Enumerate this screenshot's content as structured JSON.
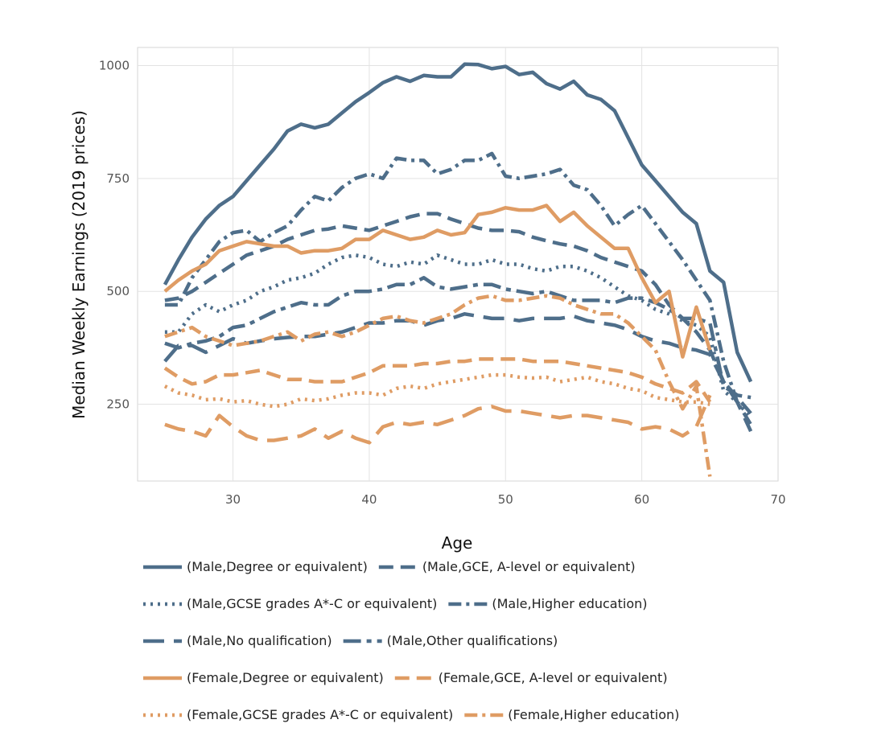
{
  "chart_data": {
    "type": "line",
    "xlabel": "Age",
    "ylabel": "Median Weekly Earnings (2019 prices)",
    "xlim": [
      23,
      70
    ],
    "ylim": [
      80,
      1040
    ],
    "xticks": [
      30,
      40,
      50,
      60,
      70
    ],
    "yticks": [
      250,
      500,
      750,
      1000
    ],
    "grid": true,
    "legend_position": "bottom",
    "colors": {
      "male": "#4e6e8a",
      "female": "#df9c64",
      "grid": "#e3e3e3",
      "frame": "#d6d6d6"
    },
    "series": [
      {
        "name": "(Male,Degree or equivalent)",
        "sex": "male",
        "style": "solid",
        "x": [
          25,
          26,
          27,
          28,
          29,
          30,
          31,
          32,
          33,
          34,
          35,
          36,
          37,
          38,
          39,
          40,
          41,
          42,
          43,
          44,
          45,
          46,
          47,
          48,
          49,
          50,
          51,
          52,
          53,
          54,
          55,
          56,
          57,
          58,
          59,
          60,
          61,
          62,
          63,
          64,
          65,
          66,
          67,
          68
        ],
        "y": [
          515,
          570,
          620,
          660,
          690,
          710,
          745,
          780,
          815,
          855,
          870,
          862,
          870,
          895,
          920,
          940,
          962,
          975,
          965,
          978,
          975,
          975,
          1003,
          1002,
          993,
          998,
          980,
          985,
          960,
          948,
          965,
          935,
          925,
          900,
          840,
          780,
          745,
          710,
          675,
          650,
          545,
          520,
          365,
          300
        ]
      },
      {
        "name": "(Male,GCE, A-level or equivalent)",
        "sex": "male",
        "style": "dash",
        "x": [
          25,
          26,
          27,
          28,
          29,
          30,
          31,
          32,
          33,
          34,
          35,
          36,
          37,
          38,
          39,
          40,
          41,
          42,
          43,
          44,
          45,
          46,
          47,
          48,
          49,
          50,
          51,
          52,
          53,
          54,
          55,
          56,
          57,
          58,
          59,
          60,
          61,
          62,
          63,
          64,
          65,
          66,
          67,
          68
        ],
        "y": [
          480,
          485,
          500,
          520,
          540,
          560,
          580,
          590,
          600,
          615,
          625,
          635,
          638,
          645,
          640,
          635,
          645,
          655,
          665,
          672,
          672,
          660,
          650,
          640,
          635,
          635,
          632,
          620,
          612,
          605,
          600,
          590,
          575,
          565,
          555,
          545,
          515,
          470,
          440,
          410,
          370,
          300,
          265,
          230
        ]
      },
      {
        "name": "(Male,GCSE grades A*-C or equivalent)",
        "sex": "male",
        "style": "dot",
        "x": [
          25,
          26,
          27,
          28,
          29,
          30,
          31,
          32,
          33,
          34,
          35,
          36,
          37,
          38,
          39,
          40,
          41,
          42,
          43,
          44,
          45,
          46,
          47,
          48,
          49,
          50,
          51,
          52,
          53,
          54,
          55,
          56,
          57,
          58,
          59,
          60,
          61,
          62,
          63,
          64,
          65,
          66,
          67,
          68
        ],
        "y": [
          410,
          410,
          450,
          470,
          455,
          470,
          480,
          500,
          510,
          525,
          530,
          540,
          560,
          575,
          580,
          575,
          560,
          555,
          565,
          560,
          580,
          570,
          560,
          560,
          570,
          560,
          560,
          550,
          545,
          555,
          555,
          545,
          530,
          510,
          490,
          480,
          460,
          450,
          435,
          425,
          400,
          280,
          255,
          220
        ]
      },
      {
        "name": "(Male,Higher education)",
        "sex": "male",
        "style": "dashdot",
        "x": [
          25,
          26,
          27,
          28,
          29,
          30,
          31,
          32,
          33,
          34,
          35,
          36,
          37,
          38,
          39,
          40,
          41,
          42,
          43,
          44,
          45,
          46,
          47,
          48,
          49,
          50,
          51,
          52,
          53,
          54,
          55,
          56,
          57,
          58,
          59,
          60,
          61,
          62,
          63,
          64,
          65,
          66,
          67,
          68
        ],
        "y": [
          470,
          470,
          530,
          570,
          610,
          630,
          635,
          610,
          630,
          645,
          680,
          710,
          700,
          730,
          750,
          760,
          750,
          795,
          790,
          790,
          760,
          770,
          790,
          790,
          805,
          755,
          750,
          755,
          760,
          770,
          735,
          725,
          690,
          645,
          670,
          690,
          650,
          610,
          570,
          525,
          480,
          345,
          255,
          205
        ]
      },
      {
        "name": "(Male,No qualification)",
        "sex": "male",
        "style": "longdash",
        "x": [
          25,
          26,
          27,
          28,
          29,
          30,
          31,
          32,
          33,
          34,
          35,
          36,
          37,
          38,
          39,
          40,
          41,
          42,
          43,
          44,
          45,
          46,
          47,
          48,
          49,
          50,
          51,
          52,
          53,
          54,
          55,
          56,
          57,
          58,
          59,
          60,
          61,
          62,
          63,
          64,
          65,
          66,
          67,
          68
        ],
        "y": [
          345,
          380,
          380,
          365,
          380,
          395,
          385,
          390,
          395,
          398,
          400,
          400,
          405,
          410,
          420,
          430,
          430,
          435,
          435,
          425,
          435,
          440,
          450,
          445,
          440,
          440,
          435,
          440,
          440,
          440,
          445,
          435,
          430,
          425,
          415,
          400,
          390,
          385,
          375,
          370,
          360,
          300,
          255,
          190
        ]
      },
      {
        "name": "(Male,Other qualifications)",
        "sex": "male",
        "style": "dashdot2",
        "x": [
          25,
          26,
          27,
          28,
          29,
          30,
          31,
          32,
          33,
          34,
          35,
          36,
          37,
          38,
          39,
          40,
          41,
          42,
          43,
          44,
          45,
          46,
          47,
          48,
          49,
          50,
          51,
          52,
          53,
          54,
          55,
          56,
          57,
          58,
          59,
          60,
          61,
          62,
          63,
          64,
          65,
          66,
          67,
          68
        ],
        "y": [
          385,
          375,
          385,
          390,
          400,
          420,
          425,
          440,
          455,
          465,
          475,
          470,
          470,
          490,
          500,
          500,
          505,
          515,
          515,
          530,
          510,
          505,
          510,
          515,
          515,
          505,
          500,
          495,
          500,
          490,
          480,
          480,
          480,
          475,
          485,
          485,
          475,
          460,
          440,
          440,
          430,
          290,
          270,
          265
        ]
      },
      {
        "name": "(Female,Degree or equivalent)",
        "sex": "female",
        "style": "solid",
        "x": [
          25,
          26,
          27,
          28,
          29,
          30,
          31,
          32,
          33,
          34,
          35,
          36,
          37,
          38,
          39,
          40,
          41,
          42,
          43,
          44,
          45,
          46,
          47,
          48,
          49,
          50,
          51,
          52,
          53,
          54,
          55,
          56,
          57,
          58,
          59,
          60,
          61,
          62,
          63,
          64,
          65
        ],
        "y": [
          500,
          525,
          545,
          560,
          590,
          600,
          610,
          605,
          600,
          600,
          585,
          590,
          590,
          595,
          615,
          615,
          635,
          625,
          615,
          620,
          635,
          625,
          630,
          670,
          675,
          685,
          680,
          680,
          690,
          655,
          675,
          645,
          620,
          595,
          595,
          530,
          475,
          500,
          355,
          465,
          370
        ]
      },
      {
        "name": "(Female,GCE, A-level or equivalent)",
        "sex": "female",
        "style": "dash",
        "x": [
          25,
          26,
          27,
          28,
          29,
          30,
          31,
          32,
          33,
          34,
          35,
          36,
          37,
          38,
          39,
          40,
          41,
          42,
          43,
          44,
          45,
          46,
          47,
          48,
          49,
          50,
          51,
          52,
          53,
          54,
          55,
          56,
          57,
          58,
          59,
          60,
          61,
          62,
          63,
          64,
          65
        ],
        "y": [
          330,
          310,
          295,
          300,
          315,
          315,
          320,
          325,
          315,
          305,
          305,
          300,
          300,
          300,
          310,
          320,
          335,
          335,
          335,
          340,
          340,
          345,
          345,
          350,
          350,
          350,
          350,
          345,
          345,
          345,
          340,
          335,
          330,
          325,
          320,
          310,
          295,
          285,
          275,
          300,
          255
        ]
      },
      {
        "name": "(Female,GCSE grades A*-C or equivalent)",
        "sex": "female",
        "style": "dot",
        "x": [
          25,
          26,
          27,
          28,
          29,
          30,
          31,
          32,
          33,
          34,
          35,
          36,
          37,
          38,
          39,
          40,
          41,
          42,
          43,
          44,
          45,
          46,
          47,
          48,
          49,
          50,
          51,
          52,
          53,
          54,
          55,
          56,
          57,
          58,
          59,
          60,
          61,
          62,
          63,
          64,
          65
        ],
        "y": [
          290,
          275,
          270,
          260,
          262,
          255,
          258,
          250,
          245,
          250,
          262,
          258,
          262,
          270,
          275,
          275,
          270,
          285,
          290,
          285,
          295,
          300,
          305,
          310,
          315,
          315,
          310,
          308,
          310,
          300,
          305,
          310,
          300,
          295,
          285,
          280,
          265,
          260,
          255,
          255,
          250
        ]
      },
      {
        "name": "(Female,Higher education)",
        "sex": "female",
        "style": "dashdot",
        "x": [
          25,
          26,
          27,
          28,
          29,
          30,
          31,
          32,
          33,
          34,
          35,
          36,
          37,
          38,
          39,
          40,
          41,
          42,
          43,
          44,
          45,
          46,
          47,
          48,
          49,
          50,
          51,
          52,
          53,
          54,
          55,
          56,
          57,
          58,
          59,
          60,
          61,
          62,
          63,
          64,
          65
        ],
        "y": [
          400,
          410,
          420,
          400,
          390,
          380,
          385,
          390,
          400,
          410,
          390,
          405,
          410,
          400,
          410,
          425,
          440,
          445,
          435,
          430,
          440,
          450,
          470,
          485,
          490,
          480,
          480,
          485,
          490,
          485,
          470,
          460,
          450,
          450,
          430,
          400,
          370,
          300,
          240,
          290,
          90
        ]
      },
      {
        "name": "",
        "sex": "female",
        "style": "longdash",
        "x": [
          25,
          26,
          27,
          28,
          29,
          30,
          31,
          32,
          33,
          34,
          35,
          36,
          37,
          38,
          39,
          40,
          41,
          42,
          43,
          44,
          45,
          46,
          47,
          48,
          49,
          50,
          51,
          52,
          53,
          54,
          55,
          56,
          57,
          58,
          59,
          60,
          61,
          62,
          63,
          64,
          65
        ],
        "y": [
          205,
          195,
          190,
          180,
          225,
          200,
          180,
          170,
          170,
          175,
          180,
          195,
          175,
          190,
          175,
          165,
          200,
          210,
          205,
          210,
          205,
          215,
          225,
          240,
          245,
          235,
          235,
          230,
          225,
          220,
          225,
          225,
          220,
          215,
          210,
          195,
          200,
          195,
          180,
          200,
          270
        ]
      }
    ]
  }
}
